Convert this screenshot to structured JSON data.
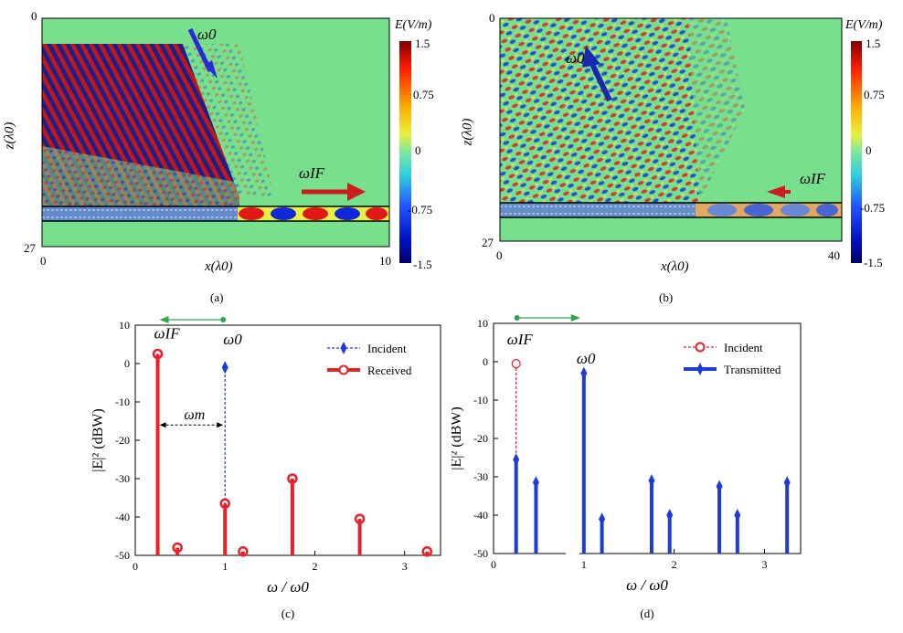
{
  "panel_a": {
    "caption": "(a)",
    "z_top": "0",
    "z_bottom": "27",
    "z_label": "z(λ0)",
    "x_left": "0",
    "x_right": "10",
    "x_label": "x(λ0)",
    "omega0": "ω0",
    "omegaIF": "ωIF"
  },
  "panel_b": {
    "caption": "(b)",
    "z_top": "0",
    "z_bottom": "27",
    "z_label": "z(λ0)",
    "x_left": "0",
    "x_right": "40",
    "x_label": "x(λ0)",
    "omega0": "ω0",
    "omegaIF": "ωIF"
  },
  "colorbar": {
    "title": "E(V/m)",
    "ticks": [
      "1.5",
      "0.75",
      "0",
      "-0.75",
      "-1.5"
    ]
  },
  "chart_data": [
    {
      "type": "bar",
      "caption": "(c)",
      "xlabel": "ω / ω0",
      "ylabel": "|E|² (dBW)",
      "xlim": [
        0,
        3.4
      ],
      "ylim": [
        -50,
        10
      ],
      "xticks": [
        "0",
        "1",
        "2",
        "3"
      ],
      "yticks": [
        "10",
        "0",
        "-10",
        "-20",
        "-30",
        "-40",
        "-50"
      ],
      "legend": [
        "Incident",
        "Received"
      ],
      "annotations": [
        "ωIF",
        "ω0",
        "ωm"
      ],
      "series": [
        {
          "name": "Incident",
          "x": [
            1.0
          ],
          "y": [
            -1
          ],
          "color": "#1f3bd6"
        },
        {
          "name": "Received",
          "x": [
            0.25,
            0.47,
            1.0,
            1.2,
            1.75,
            2.5,
            3.25
          ],
          "y": [
            2.5,
            -48,
            -36.5,
            -49,
            -30,
            -40.5,
            -49
          ],
          "color": "#e8202a"
        }
      ]
    },
    {
      "type": "bar",
      "caption": "(d)",
      "xlabel": "ω / ω0",
      "ylabel": "|E|² (dBW)",
      "xlim": [
        0,
        3.4
      ],
      "ylim": [
        -50,
        10
      ],
      "xticks": [
        "0",
        "1",
        "2",
        "3"
      ],
      "yticks": [
        "10",
        "0",
        "-10",
        "-20",
        "-30",
        "-40",
        "-50"
      ],
      "legend": [
        "Incident",
        "Transmitted"
      ],
      "annotations": [
        "ωIF",
        "ω0"
      ],
      "series": [
        {
          "name": "Incident",
          "x": [
            0.25
          ],
          "y": [
            -0.5
          ],
          "color": "#e8202a"
        },
        {
          "name": "Transmitted",
          "x": [
            0.25,
            0.47,
            1.0,
            1.2,
            1.75,
            1.95,
            2.5,
            2.7,
            3.25
          ],
          "y": [
            -25.5,
            -31.5,
            -3,
            -41,
            -31,
            -40,
            -32.5,
            -40,
            -31.5
          ],
          "color": "#1f3bd6"
        }
      ]
    }
  ]
}
